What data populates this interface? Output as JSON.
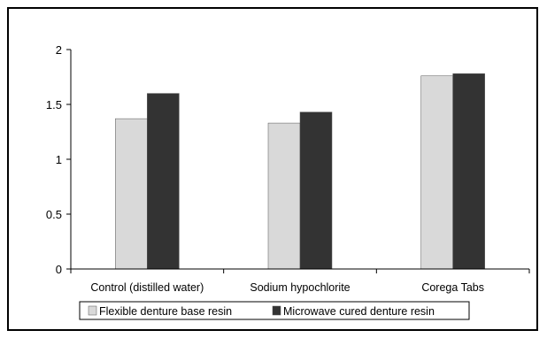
{
  "chart_data": {
    "type": "bar",
    "title": "",
    "xlabel": "",
    "ylabel": "",
    "categories": [
      "Control (distilled water)",
      "Sodium hypochlorite",
      "Corega Tabs"
    ],
    "series": [
      {
        "name": "Flexible denture base resin",
        "values": [
          1.37,
          1.33,
          1.76
        ],
        "color": "#d9d9d9"
      },
      {
        "name": "Microwave cured denture resin",
        "values": [
          1.6,
          1.43,
          1.78
        ],
        "color": "#333333"
      }
    ],
    "ylim": [
      0,
      2
    ],
    "yticks": [
      "0",
      "0.5",
      "1",
      "1.5",
      "2"
    ],
    "grid": false,
    "legend_position": "bottom"
  }
}
